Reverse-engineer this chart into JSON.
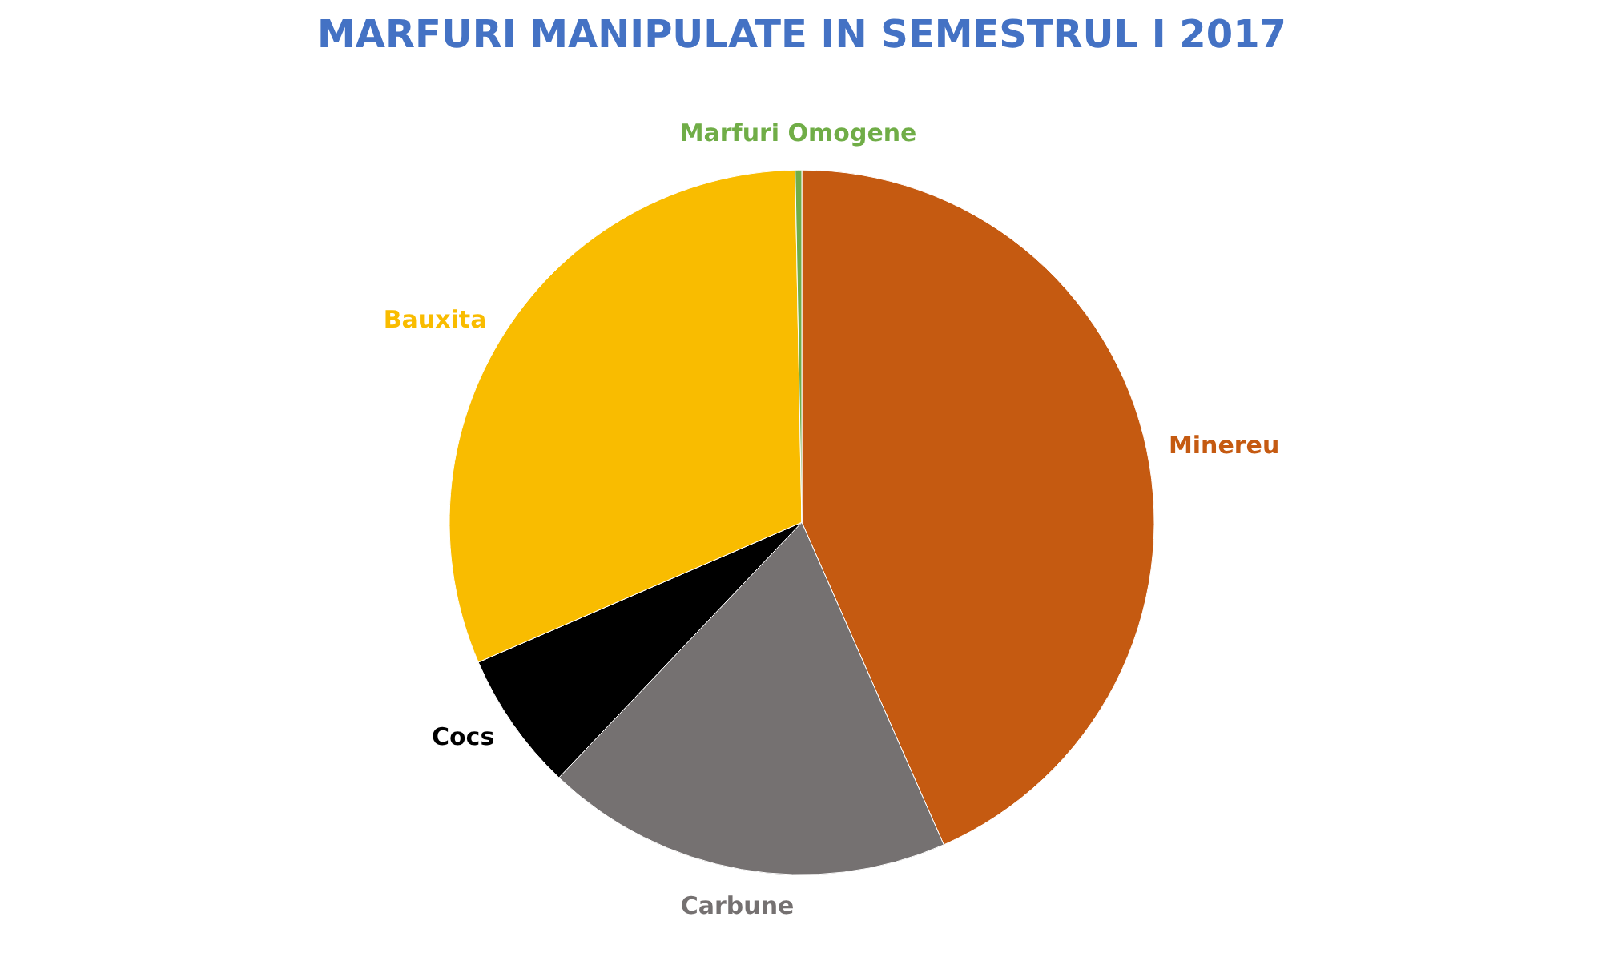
{
  "chart_data": {
    "type": "pie",
    "title": "MARFURI MANIPULATE IN SEMESTRUL I 2017",
    "categories": [
      "Minereu",
      "Carbune",
      "Cocs",
      "Bauxita",
      "Marfuri Omogene"
    ],
    "values": [
      43.4,
      18.7,
      6.4,
      31.2,
      0.3
    ],
    "colors": [
      "#c55a11",
      "#757171",
      "#000000",
      "#f9bc00",
      "#70ad47"
    ]
  }
}
